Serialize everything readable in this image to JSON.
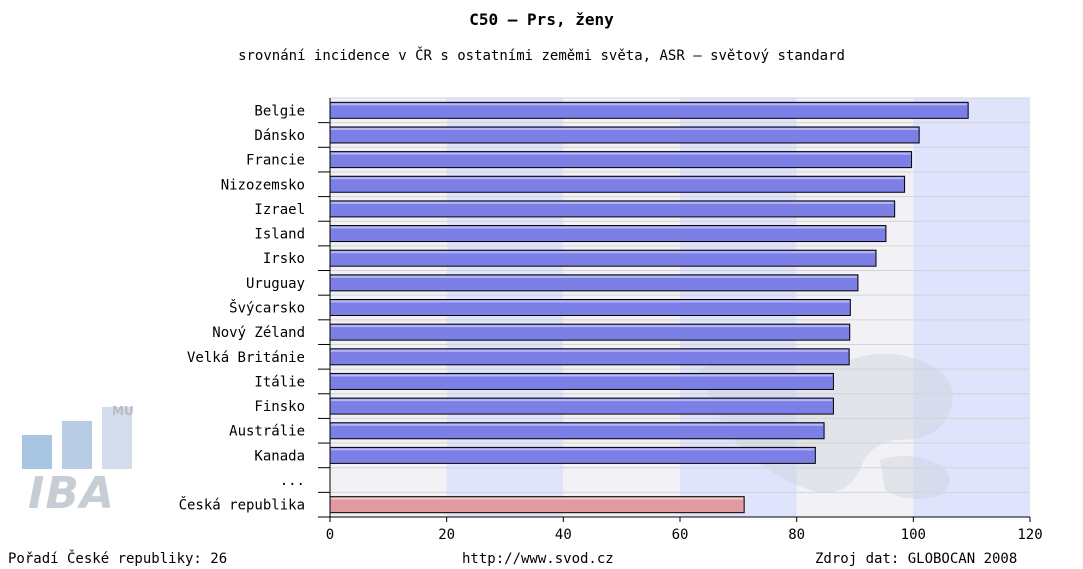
{
  "chart_data": {
    "type": "bar",
    "orientation": "horizontal",
    "title": "C50 – Prs, ženy",
    "subtitle": "srovnání incidence v ČR s ostatními zeměmi světa, ASR – světový standard",
    "categories": [
      "Belgie",
      "Dánsko",
      "Francie",
      "Nizozemsko",
      "Izrael",
      "Island",
      "Irsko",
      "Uruguay",
      "Švýcarsko",
      "Nový Zéland",
      "Velká Británie",
      "Itálie",
      "Finsko",
      "Austrálie",
      "Kanada",
      "...",
      "Česká republika"
    ],
    "values": [
      109.4,
      101.0,
      99.7,
      98.5,
      96.8,
      95.3,
      93.6,
      90.5,
      89.2,
      89.1,
      89.0,
      86.3,
      86.3,
      84.7,
      83.2,
      null,
      71.0
    ],
    "highlight": "Česká republika",
    "xlim": [
      0,
      120
    ],
    "xticks": [
      0,
      20,
      40,
      60,
      80,
      100,
      120
    ],
    "grid": true,
    "colors": {
      "bar": "#7b7fe6",
      "highlight_bar": "#e09aa0",
      "band_light": "#f2f2f6",
      "band_blue": "#dfe3fb"
    }
  },
  "footer": {
    "rank": "Pořadí České republiky: 26",
    "url": "http://www.svod.cz",
    "source": "Zdroj dat: GLOBOCAN 2008"
  },
  "logo": {
    "text": "IBA",
    "badge": "MU"
  }
}
